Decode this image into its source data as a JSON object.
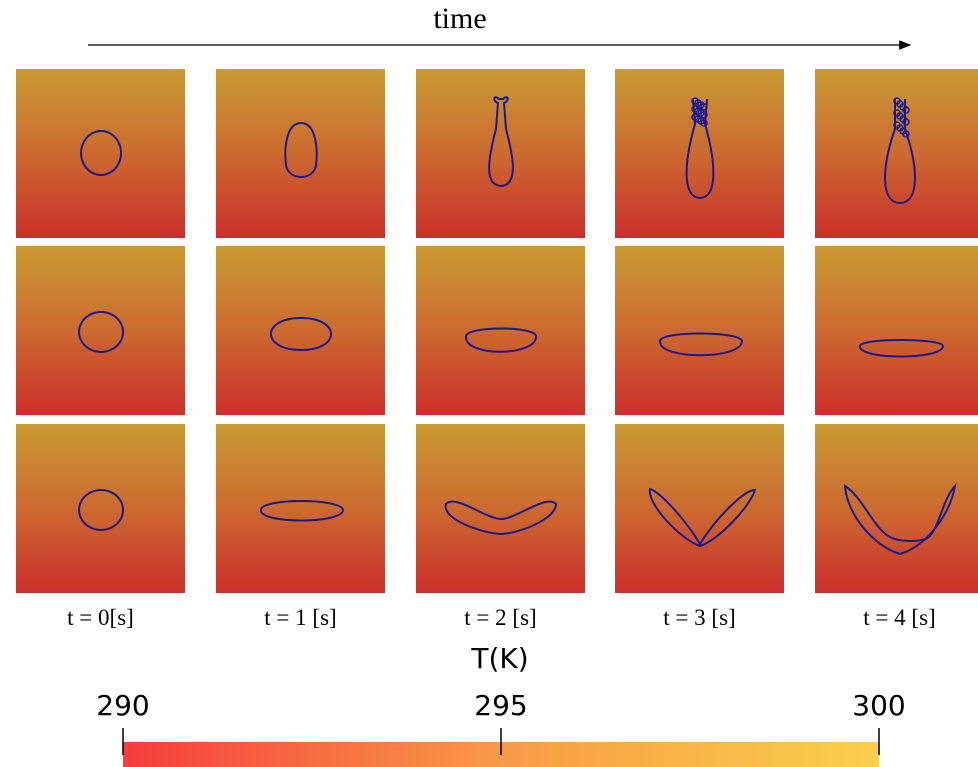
{
  "header": {
    "title": "time"
  },
  "columns": [
    "t = 0[s]",
    "t = 1 [s]",
    "t = 2 [s]",
    "t = 3 [s]",
    "t = 4 [s]"
  ],
  "colorbar": {
    "title": "T(K)",
    "lim": [
      290,
      300
    ],
    "ticks": [
      290,
      295,
      300
    ]
  }
}
